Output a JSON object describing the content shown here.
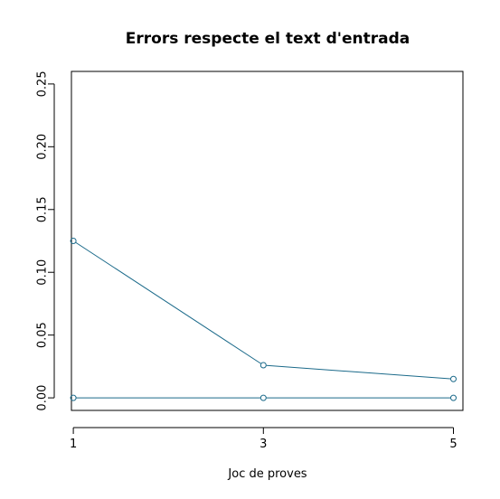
{
  "chart_data": {
    "type": "line",
    "title": "Errors respecte el text d'entrada",
    "xlabel": "Joc de proves",
    "ylabel": "",
    "x": [
      1,
      3,
      5
    ],
    "xticks": [
      "1",
      "3",
      "5"
    ],
    "xlim": [
      0.98,
      5.1
    ],
    "yticks": [
      "0.00",
      "0.05",
      "0.10",
      "0.15",
      "0.20",
      "0.25"
    ],
    "ylim": [
      -0.01,
      0.26
    ],
    "grid": false,
    "legend": "none",
    "series_color": "#1b6a8a",
    "series": [
      {
        "values": [
          0.125,
          0.026,
          0.015
        ]
      },
      {
        "values": [
          0.0,
          0.0,
          0.0
        ]
      }
    ]
  }
}
